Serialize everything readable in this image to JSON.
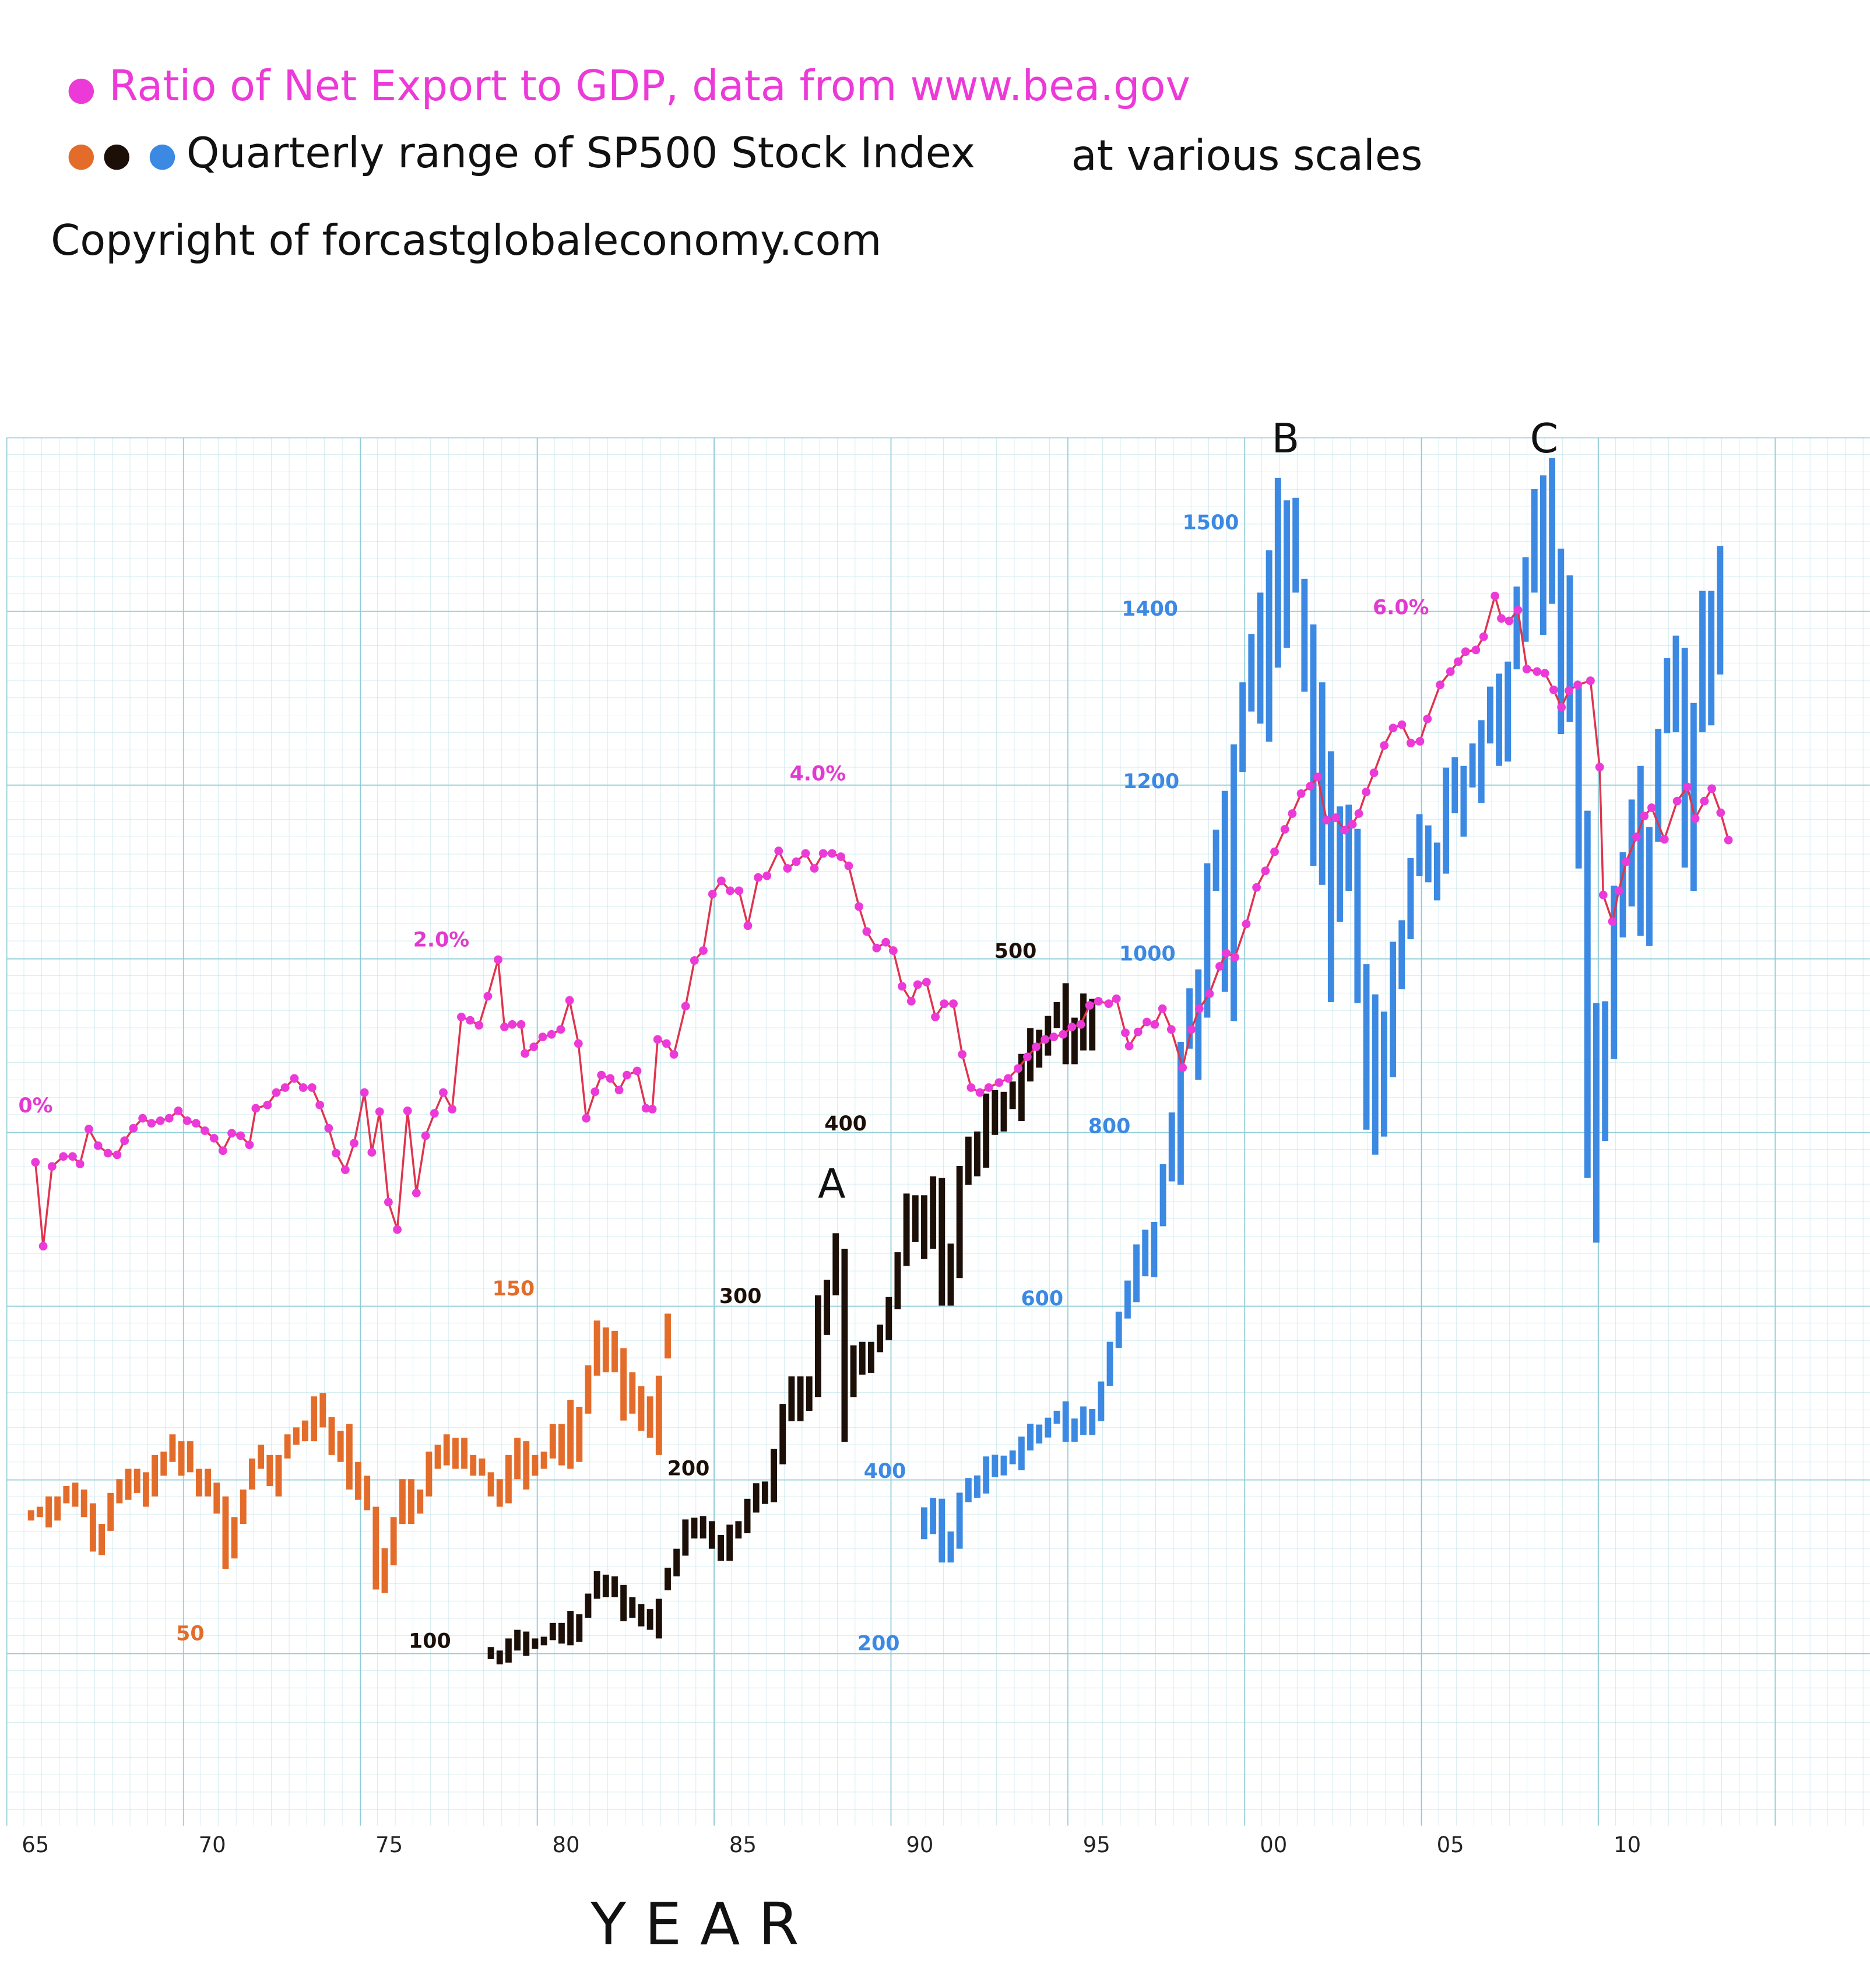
{
  "legend_sp500": "Quarterly range of SP500 Stock Index",
  "legend_sp500_note": "at various scales",
  "copyright": "Copyright of forcastglobaleconomy.com",
  "annotations": [
    "A",
    "B",
    "C"
  ],
  "x_axis": {
    "xlabel": "Y E A R",
    "xlim": [
      1964.18,
      2016.86
    ],
    "xticks": [
      {
        "value": 1965,
        "label": "65"
      },
      {
        "value": 1970,
        "label": "70"
      },
      {
        "value": 1975,
        "label": "75"
      },
      {
        "value": 1980,
        "label": "80"
      },
      {
        "value": 1985,
        "label": "85"
      },
      {
        "value": 1990,
        "label": "90"
      },
      {
        "value": 1995,
        "label": "95"
      },
      {
        "value": 2000,
        "label": "00"
      },
      {
        "value": 2005,
        "label": "05"
      },
      {
        "value": 2010,
        "label": "10"
      }
    ]
  },
  "chart_data": [
    {
      "type": "line",
      "name": "Ratio of Net Export to GDP, data from www.bea.gov",
      "color": "#ec3ad8",
      "line_color": "#e0344e",
      "ylim": [
        -8.66,
        8.06
      ],
      "yticks": [
        {
          "value": 0,
          "label": "0%"
        },
        {
          "value": 2,
          "label": "2.0%"
        },
        {
          "value": 4,
          "label": "4.0%"
        },
        {
          "value": 6,
          "label": "6.0%"
        }
      ],
      "x": [
        1965.0,
        1965.22,
        1965.47,
        1965.79,
        1966.05,
        1966.26,
        1966.51,
        1966.77,
        1967.05,
        1967.31,
        1967.52,
        1967.77,
        1968.03,
        1968.28,
        1968.53,
        1968.78,
        1969.04,
        1969.29,
        1969.54,
        1969.79,
        1970.05,
        1970.3,
        1970.55,
        1970.8,
        1971.05,
        1971.23,
        1971.56,
        1971.81,
        1972.06,
        1972.32,
        1972.57,
        1972.82,
        1973.04,
        1973.29,
        1973.5,
        1973.76,
        1974.01,
        1974.3,
        1974.51,
        1974.73,
        1974.98,
        1975.23,
        1975.52,
        1975.77,
        1976.03,
        1976.28,
        1976.53,
        1976.78,
        1977.04,
        1977.29,
        1977.54,
        1977.79,
        1978.08,
        1978.26,
        1978.48,
        1978.73,
        1978.84,
        1979.09,
        1979.34,
        1979.59,
        1979.85,
        1980.1,
        1980.35,
        1980.57,
        1980.82,
        1981.0,
        1981.25,
        1981.5,
        1981.72,
        1982.01,
        1982.26,
        1982.44,
        1982.59,
        1982.84,
        1983.05,
        1983.38,
        1983.63,
        1983.88,
        1984.14,
        1984.39,
        1984.64,
        1984.89,
        1985.14,
        1985.43,
        1985.68,
        1986.01,
        1986.26,
        1986.51,
        1986.77,
        1987.02,
        1987.27,
        1987.52,
        1987.77,
        1987.99,
        1988.28,
        1988.5,
        1988.78,
        1989.04,
        1989.25,
        1989.5,
        1989.76,
        1989.94,
        1990.19,
        1990.44,
        1990.69,
        1990.95,
        1991.2,
        1991.45,
        1991.7,
        1991.95,
        1992.24,
        1992.5,
        1992.78,
        1993.04,
        1993.29,
        1993.54,
        1993.79,
        1994.05,
        1994.3,
        1994.55,
        1994.8,
        1995.05,
        1995.34,
        1995.56,
        1995.81,
        1995.92,
        1996.17,
        1996.42,
        1996.64,
        1996.86,
        1997.11,
        1997.43,
        1997.68,
        1997.9,
        1998.19,
        1998.48,
        1998.66,
        1998.91,
        1999.23,
        1999.52,
        1999.77,
        2000.03,
        2000.32,
        2000.53,
        2000.78,
        2001.04,
        2001.25,
        2001.5,
        2001.76,
        2002.01,
        2002.23,
        2002.41,
        2002.62,
        2002.84,
        2003.13,
        2003.38,
        2003.63,
        2003.88,
        2004.14,
        2004.35,
        2004.71,
        2005.0,
        2005.22,
        2005.43,
        2005.72,
        2005.94,
        2006.26,
        2006.44,
        2006.66,
        2006.91,
        2007.16,
        2007.45,
        2007.67,
        2007.92,
        2008.14,
        2008.35,
        2008.6,
        2008.96,
        2009.22,
        2009.32,
        2009.58,
        2009.76,
        2009.97,
        2010.26,
        2010.48,
        2010.69,
        2011.05,
        2011.41,
        2011.7,
        2011.92,
        2012.18,
        2012.39,
        2012.64,
        2012.86
      ],
      "values": [
        -0.67,
        -1.68,
        -0.72,
        -0.6,
        -0.6,
        -0.69,
        -0.27,
        -0.47,
        -0.56,
        -0.58,
        -0.41,
        -0.26,
        -0.14,
        -0.2,
        -0.17,
        -0.14,
        -0.05,
        -0.17,
        -0.2,
        -0.29,
        -0.38,
        -0.53,
        -0.32,
        -0.35,
        -0.46,
        -0.02,
        0.02,
        0.17,
        0.23,
        0.34,
        0.23,
        0.23,
        0.02,
        -0.26,
        -0.56,
        -0.76,
        -0.44,
        0.17,
        -0.55,
        -0.06,
        -1.15,
        -1.48,
        -0.05,
        -1.04,
        -0.35,
        -0.08,
        0.17,
        -0.03,
        1.08,
        1.04,
        0.98,
        1.33,
        1.77,
        0.96,
        0.99,
        0.99,
        0.64,
        0.72,
        0.84,
        0.87,
        0.93,
        1.28,
        0.76,
        -0.14,
        0.18,
        0.38,
        0.34,
        0.2,
        0.38,
        0.43,
        -0.02,
        -0.03,
        0.81,
        0.76,
        0.63,
        1.21,
        1.76,
        1.88,
        2.56,
        2.72,
        2.6,
        2.6,
        2.18,
        2.76,
        2.78,
        3.08,
        2.87,
        2.95,
        3.05,
        2.87,
        3.05,
        3.05,
        3.01,
        2.9,
        2.41,
        2.11,
        1.91,
        1.98,
        1.88,
        1.45,
        1.27,
        1.47,
        1.5,
        1.08,
        1.24,
        1.24,
        0.63,
        0.23,
        0.17,
        0.23,
        0.29,
        0.34,
        0.46,
        0.6,
        0.72,
        0.81,
        0.84,
        0.87,
        0.96,
        0.99,
        1.22,
        1.27,
        1.24,
        1.3,
        0.89,
        0.73,
        0.9,
        1.02,
        0.99,
        1.18,
        0.93,
        0.47,
        0.93,
        1.18,
        1.36,
        1.69,
        1.85,
        1.8,
        2.2,
        2.64,
        2.84,
        3.07,
        3.34,
        3.53,
        3.77,
        3.86,
        3.97,
        3.45,
        3.48,
        3.33,
        3.4,
        3.53,
        3.79,
        4.02,
        4.35,
        4.56,
        4.6,
        4.38,
        4.4,
        4.67,
        5.08,
        5.24,
        5.36,
        5.48,
        5.5,
        5.66,
        6.15,
        5.88,
        5.85,
        5.98,
        5.27,
        5.24,
        5.22,
        5.02,
        4.81,
        5.01,
        5.08,
        5.13,
        4.09,
        2.55,
        2.23,
        2.6,
        2.95,
        3.25,
        3.5,
        3.6,
        3.22,
        3.68,
        3.85,
        3.47,
        3.68,
        3.83,
        3.54,
        3.21
      ]
    },
    {
      "type": "range",
      "color": "#e36c2a",
      "ylim": [
        -5.5,
        397.1
      ],
      "yticks": [
        50,
        150
      ],
      "x": [
        1964.875,
        1965.125,
        1965.375,
        1965.625,
        1965.875,
        1966.125,
        1966.375,
        1966.625,
        1966.875,
        1967.125,
        1967.375,
        1967.625,
        1967.875,
        1968.125,
        1968.375,
        1968.625,
        1968.875,
        1969.125,
        1969.375,
        1969.625,
        1969.875,
        1970.125,
        1970.375,
        1970.625,
        1970.875,
        1971.125,
        1971.375,
        1971.625,
        1971.875,
        1972.125,
        1972.375,
        1972.625,
        1972.875,
        1973.125,
        1973.375,
        1973.625,
        1973.875,
        1974.125,
        1974.375,
        1974.625,
        1974.875,
        1975.125,
        1975.375,
        1975.625,
        1975.875,
        1976.125,
        1976.375,
        1976.625,
        1976.875,
        1977.125,
        1977.375,
        1977.625,
        1977.875,
        1978.125,
        1978.375,
        1978.625,
        1978.875,
        1979.125,
        1979.375,
        1979.625,
        1979.875,
        1980.125,
        1980.375,
        1980.625,
        1980.875,
        1981.125,
        1981.375,
        1981.625,
        1981.875,
        1982.125,
        1982.375,
        1982.625,
        1982.875
      ],
      "low": [
        83,
        84,
        81,
        83,
        88,
        87,
        84,
        74,
        73,
        80,
        88,
        89,
        91,
        87,
        90,
        96,
        100,
        96,
        97,
        90,
        90,
        85,
        69,
        72,
        82,
        92,
        98,
        93,
        90,
        101,
        105,
        106,
        106,
        110,
        102,
        100,
        92,
        89,
        86,
        63,
        62,
        70,
        82,
        82,
        85,
        90,
        98,
        99,
        98,
        98,
        96,
        96,
        90,
        87,
        88,
        95,
        92,
        96,
        98,
        101,
        99,
        98,
        100,
        114,
        125,
        126,
        126,
        112,
        114,
        109,
        107,
        102,
        130
      ],
      "high": [
        86,
        87,
        90,
        90,
        93,
        94,
        92,
        88,
        82,
        91,
        95,
        98,
        98,
        97,
        102,
        103,
        108,
        106,
        106,
        98,
        98,
        94,
        90,
        84,
        92,
        101,
        105,
        102,
        102,
        108,
        110,
        112,
        119,
        120,
        113,
        109,
        111,
        100,
        96,
        87,
        75,
        84,
        95,
        95,
        92,
        103,
        105,
        108,
        107,
        107,
        102,
        101,
        97,
        95,
        102,
        107,
        106,
        102,
        103,
        111,
        111,
        118,
        116,
        128,
        141,
        139,
        138,
        133,
        126,
        122,
        119,
        125,
        143
      ]
    },
    {
      "type": "range",
      "color": "#1c0f08",
      "ylim": [
        -6.6,
        798.5
      ],
      "yticks": [
        100,
        200,
        300,
        400,
        500
      ],
      "x": [
        1977.875,
        1978.125,
        1978.375,
        1978.625,
        1978.875,
        1979.125,
        1979.375,
        1979.625,
        1979.875,
        1980.125,
        1980.375,
        1980.625,
        1980.875,
        1981.125,
        1981.375,
        1981.625,
        1981.875,
        1982.125,
        1982.375,
        1982.625,
        1982.875,
        1983.125,
        1983.375,
        1983.625,
        1983.875,
        1984.125,
        1984.375,
        1984.625,
        1984.875,
        1985.125,
        1985.375,
        1985.625,
        1985.875,
        1986.125,
        1986.375,
        1986.625,
        1986.875,
        1987.125,
        1987.375,
        1987.625,
        1987.875,
        1988.125,
        1988.375,
        1988.625,
        1988.875,
        1989.125,
        1989.375,
        1989.625,
        1989.875,
        1990.125,
        1990.375,
        1990.625,
        1990.875,
        1991.125,
        1991.375,
        1991.625,
        1991.875,
        1992.125,
        1992.375,
        1992.625,
        1992.875,
        1993.125,
        1993.375,
        1993.625,
        1993.875,
        1994.125,
        1994.375,
        1994.625,
        1994.875
      ],
      "low": [
        90,
        87,
        88,
        95,
        92,
        96,
        98,
        101,
        99,
        98,
        100,
        114,
        125,
        126,
        126,
        112,
        114,
        109,
        107,
        102,
        130,
        138,
        150,
        160,
        160,
        154,
        147,
        147,
        160,
        163,
        175,
        180,
        181,
        203,
        228,
        228,
        234,
        242,
        278,
        301,
        216,
        242,
        255,
        256,
        268,
        275,
        293,
        318,
        332,
        322,
        328,
        295,
        295,
        311,
        365,
        370,
        375,
        394,
        396,
        409,
        402,
        425,
        433,
        440,
        456,
        435,
        435,
        443,
        443
      ],
      "high": [
        97,
        95,
        102,
        107,
        106,
        102,
        103,
        111,
        111,
        118,
        116,
        128,
        141,
        139,
        138,
        133,
        126,
        122,
        119,
        125,
        143,
        154,
        171,
        172,
        173,
        170,
        162,
        168,
        170,
        183,
        192,
        193,
        212,
        238,
        254,
        254,
        254,
        301,
        310,
        337,
        328,
        272,
        274,
        274,
        284,
        300,
        326,
        360,
        359,
        359,
        370,
        369,
        331,
        376,
        393,
        396,
        418,
        420,
        419,
        425,
        441,
        456,
        455,
        463,
        471,
        482,
        462,
        476,
        473
      ]
    },
    {
      "type": "range",
      "color": "#3b89e2",
      "ylim": [
        -10.3,
        1600
      ],
      "yticks": [
        200,
        400,
        600,
        800,
        1000,
        1200,
        1400,
        1500
      ],
      "x": [
        1990.125,
        1990.375,
        1990.625,
        1990.875,
        1991.125,
        1991.375,
        1991.625,
        1991.875,
        1992.125,
        1992.375,
        1992.625,
        1992.875,
        1993.125,
        1993.375,
        1993.625,
        1993.875,
        1994.125,
        1994.375,
        1994.625,
        1994.875,
        1995.125,
        1995.375,
        1995.625,
        1995.875,
        1996.125,
        1996.375,
        1996.625,
        1996.875,
        1997.125,
        1997.375,
        1997.625,
        1997.875,
        1998.125,
        1998.375,
        1998.625,
        1998.875,
        1999.125,
        1999.375,
        1999.625,
        1999.875,
        2000.125,
        2000.375,
        2000.625,
        2000.875,
        2001.125,
        2001.375,
        2001.625,
        2001.875,
        2002.125,
        2002.375,
        2002.625,
        2002.875,
        2003.125,
        2003.375,
        2003.625,
        2003.875,
        2004.125,
        2004.375,
        2004.625,
        2004.875,
        2005.125,
        2005.375,
        2005.625,
        2005.875,
        2006.125,
        2006.375,
        2006.625,
        2006.875,
        2007.125,
        2007.375,
        2007.625,
        2007.875,
        2008.125,
        2008.375,
        2008.625,
        2008.875,
        2009.125,
        2009.375,
        2009.625,
        2009.875,
        2010.125,
        2010.375,
        2010.625,
        2010.875,
        2011.125,
        2011.375,
        2011.625,
        2011.875,
        2012.125,
        2012.375,
        2012.625
      ],
      "low": [
        322,
        328,
        295,
        295,
        311,
        365,
        370,
        375,
        394,
        396,
        409,
        402,
        425,
        433,
        440,
        456,
        435,
        435,
        443,
        443,
        459,
        500,
        544,
        578,
        597,
        627,
        626,
        685,
        737,
        733,
        891,
        855,
        927,
        1074,
        957,
        923,
        1212,
        1282,
        1268,
        1247,
        1333,
        1356,
        1420,
        1305,
        1103,
        1081,
        945,
        1038,
        1074,
        944,
        797,
        768,
        789,
        858,
        960,
        1018,
        1091,
        1084,
        1063,
        1094,
        1164,
        1137,
        1194,
        1176,
        1245,
        1219,
        1224,
        1331,
        1363,
        1420,
        1371,
        1407,
        1256,
        1270,
        1100,
        741,
        666,
        784,
        879,
        1020,
        1056,
        1022,
        1010,
        1131,
        1257,
        1258,
        1101,
        1074,
        1258,
        1266,
        1325
      ],
      "high": [
        359,
        370,
        369,
        331,
        376,
        393,
        396,
        418,
        420,
        419,
        425,
        441,
        456,
        455,
        463,
        471,
        482,
        462,
        476,
        473,
        505,
        551,
        586,
        622,
        664,
        681,
        690,
        757,
        817,
        899,
        961,
        983,
        1106,
        1145,
        1190,
        1244,
        1316,
        1372,
        1420,
        1469,
        1553,
        1527,
        1530,
        1436,
        1383,
        1316,
        1236,
        1172,
        1174,
        1146,
        989,
        954,
        934,
        1015,
        1040,
        1112,
        1163,
        1150,
        1130,
        1217,
        1229,
        1219,
        1245,
        1272,
        1311,
        1326,
        1340,
        1427,
        1461,
        1540,
        1556,
        1576,
        1471,
        1440,
        1313,
        1167,
        944,
        946,
        1080,
        1119,
        1180,
        1219,
        1148,
        1262,
        1344,
        1370,
        1356,
        1292,
        1422,
        1422,
        1474
      ]
    }
  ]
}
